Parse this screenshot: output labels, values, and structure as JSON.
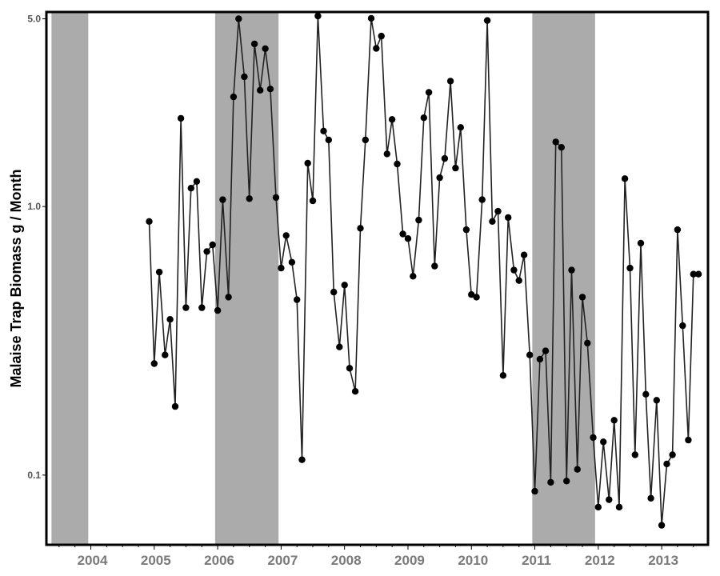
{
  "chart_data": {
    "type": "line",
    "xlabel": "",
    "ylabel": "Malaise Trap Biomass g / Month",
    "yscale": "log",
    "ylim": [
      0.055,
      5.3
    ],
    "xlim": [
      2003.3,
      2013.73
    ],
    "yticks": [
      {
        "value": 0.1,
        "label": "0.1"
      },
      {
        "value": 1.0,
        "label": "1.0"
      },
      {
        "value": 5.0,
        "label": "5.0"
      }
    ],
    "xticks": [
      {
        "value": 2004.0,
        "label": "2004"
      },
      {
        "value": 2005.0,
        "label": "2005"
      },
      {
        "value": 2006.0,
        "label": "2006"
      },
      {
        "value": 2007.0,
        "label": "2007"
      },
      {
        "value": 2008.0,
        "label": "2008"
      },
      {
        "value": 2009.0,
        "label": "2009"
      },
      {
        "value": 2010.0,
        "label": "2010"
      },
      {
        "value": 2011.0,
        "label": "2011"
      },
      {
        "value": 2012.0,
        "label": "2012"
      },
      {
        "value": 2013.0,
        "label": "2013"
      }
    ],
    "shaded_periods": [
      [
        2003.38,
        2003.96
      ],
      [
        2005.96,
        2006.96
      ],
      [
        2010.96,
        2011.95
      ]
    ],
    "grid": false,
    "colors": {
      "line": "#222222",
      "point": "#000000",
      "shade": "#ababab",
      "frame": "#000000"
    },
    "series": [
      {
        "x": [
          2004.92,
          2005.0,
          2005.08,
          2005.17,
          2005.25,
          2005.33,
          2005.42,
          2005.5,
          2005.58,
          2005.67,
          2005.75,
          2005.83,
          2005.92,
          2006.0,
          2006.08,
          2006.17,
          2006.25,
          2006.33,
          2006.42,
          2006.5,
          2006.58,
          2006.67,
          2006.75,
          2006.83,
          2006.92,
          2007.0,
          2007.08,
          2007.17,
          2007.25,
          2007.33,
          2007.42,
          2007.5,
          2007.58,
          2007.67,
          2007.75,
          2007.83,
          2007.92,
          2008.0,
          2008.08,
          2008.17,
          2008.25,
          2008.33,
          2008.42,
          2008.5,
          2008.58,
          2008.67,
          2008.75,
          2008.83,
          2008.92,
          2009.0,
          2009.08,
          2009.17,
          2009.25,
          2009.33,
          2009.42,
          2009.5,
          2009.58,
          2009.67,
          2009.75,
          2009.83,
          2009.92,
          2010.0,
          2010.08,
          2010.17,
          2010.25,
          2010.33,
          2010.42,
          2010.5,
          2010.58,
          2010.67,
          2010.75,
          2010.83,
          2010.92,
          2011.0,
          2011.08,
          2011.17,
          2011.25,
          2011.33,
          2011.42,
          2011.5,
          2011.58,
          2011.67,
          2011.75,
          2011.83,
          2011.92,
          2012.0,
          2012.08,
          2012.17,
          2012.25,
          2012.33,
          2012.42,
          2012.5,
          2012.58,
          2012.67,
          2012.75,
          2012.83,
          2012.92,
          2013.0,
          2013.08,
          2013.17,
          2013.25,
          2013.33,
          2013.42,
          2013.5,
          2013.58
        ],
        "y": [
          0.88,
          0.26,
          0.57,
          0.28,
          0.38,
          0.18,
          2.13,
          0.42,
          1.17,
          1.24,
          0.42,
          0.68,
          0.72,
          0.41,
          1.06,
          0.46,
          2.56,
          5.0,
          3.04,
          1.07,
          4.03,
          2.71,
          3.87,
          2.74,
          1.08,
          0.59,
          0.78,
          0.62,
          0.45,
          0.114,
          1.45,
          1.05,
          5.12,
          1.91,
          1.77,
          0.48,
          0.3,
          0.51,
          0.25,
          0.205,
          0.83,
          1.77,
          5.02,
          3.88,
          4.31,
          1.57,
          2.11,
          1.44,
          0.79,
          0.76,
          0.55,
          0.89,
          2.14,
          2.66,
          0.6,
          1.28,
          1.51,
          2.93,
          1.39,
          1.97,
          0.82,
          0.47,
          0.46,
          1.06,
          4.93,
          0.88,
          0.96,
          0.235,
          0.91,
          0.58,
          0.53,
          0.66,
          0.28,
          0.087,
          0.27,
          0.29,
          0.094,
          1.74,
          1.66,
          0.095,
          0.58,
          0.105,
          0.46,
          0.31,
          0.138,
          0.076,
          0.133,
          0.081,
          0.16,
          0.076,
          1.27,
          0.59,
          0.119,
          0.73,
          0.2,
          0.082,
          0.19,
          0.065,
          0.11,
          0.119,
          0.82,
          0.36,
          0.135,
          0.56,
          0.56
        ]
      }
    ]
  }
}
